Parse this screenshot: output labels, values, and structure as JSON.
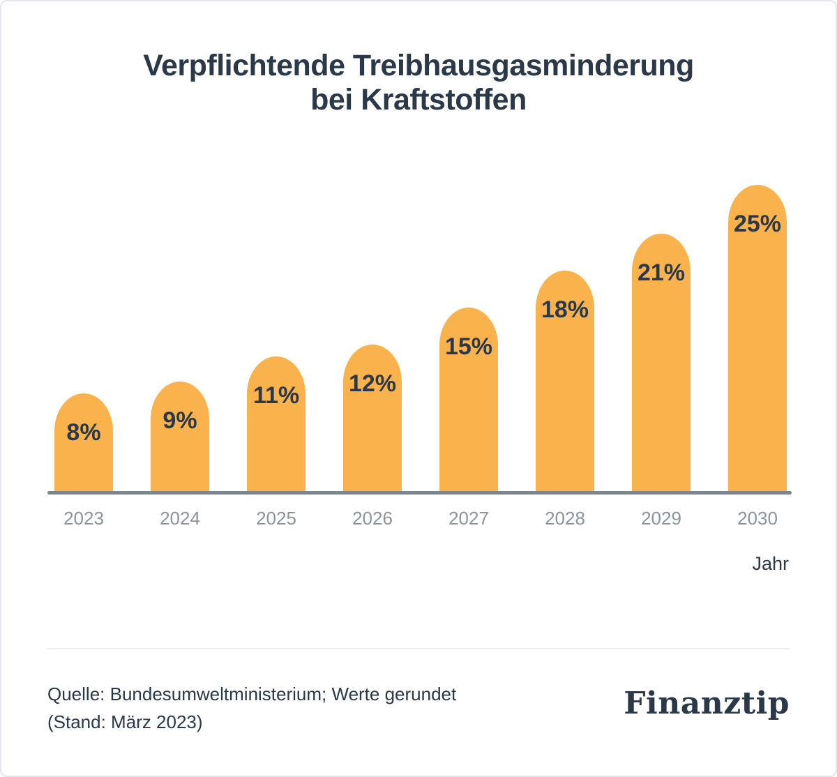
{
  "chart_data": {
    "type": "bar",
    "title": "Verpflichtende Treibhausgasminderung\nbei Kraftstoffen",
    "categories": [
      "2023",
      "2024",
      "2025",
      "2026",
      "2027",
      "2028",
      "2029",
      "2030"
    ],
    "values": [
      8,
      9,
      11,
      12,
      15,
      18,
      21,
      25
    ],
    "value_labels": [
      "8%",
      "9%",
      "11%",
      "12%",
      "15%",
      "18%",
      "21%",
      "25%"
    ],
    "xlabel": "Jahr",
    "ylabel": "",
    "ylim": [
      0,
      27
    ],
    "grid": false,
    "legend": "none",
    "bar_color": "#F9B24C",
    "value_label_color": "#2A3847",
    "tick_label_color": "#8B939B",
    "axis_line_color": "#7D868F"
  },
  "footer": {
    "source_lines": [
      "Quelle: Bundesumweltministerium; Werte gerundet",
      "(Stand: März 2023)"
    ],
    "logo_text": "Finanztip"
  },
  "colors": {
    "accent": "#F9B24C",
    "ink": "#2A3847",
    "muted": "#8B939B",
    "axis": "#7D868F",
    "border": "#E4E5EF",
    "divider": "#ECEEF3"
  }
}
